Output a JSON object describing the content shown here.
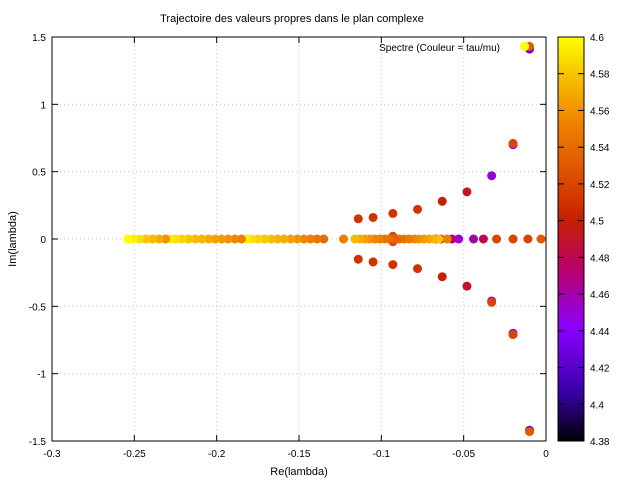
{
  "chart_data": {
    "type": "scatter",
    "title": "Trajectoire des valeurs propres dans le plan complexe",
    "xlabel": "Re(lambda)",
    "ylabel": "Im(lambda)",
    "xlim": [
      -0.3,
      0
    ],
    "ylim": [
      -1.5,
      1.5
    ],
    "xticks": [
      -0.3,
      -0.25,
      -0.2,
      -0.15,
      -0.1,
      -0.05,
      0
    ],
    "xtick_labels": [
      "-0.3",
      "-0.25",
      "-0.2",
      "-0.15",
      "-0.1",
      "-0.05",
      "0"
    ],
    "yticks": [
      -1.5,
      -1,
      -0.5,
      0,
      0.5,
      1,
      1.5
    ],
    "ytick_labels": [
      "-1.5",
      "-1",
      "-0.5",
      "0",
      "0.5",
      "1",
      "1.5"
    ],
    "grid": true,
    "legend": {
      "label": "Spectre (Couleur = tau/mu)",
      "position": "top-right"
    },
    "colorbar": {
      "range": [
        4.38,
        4.6
      ],
      "ticks": [
        4.38,
        4.4,
        4.42,
        4.44,
        4.46,
        4.48,
        4.5,
        4.52,
        4.54,
        4.56,
        4.58,
        4.6
      ],
      "tick_labels": [
        "4.38",
        "4.4",
        "4.42",
        "4.44",
        "4.46",
        "4.48",
        "4.5",
        "4.52",
        "4.54",
        "4.56",
        "4.58",
        "4.6"
      ],
      "palette": [
        "#000000",
        "#3a00a8",
        "#8a00ff",
        "#b80070",
        "#c82000",
        "#e05800",
        "#f08800",
        "#f8c000",
        "#ffff00"
      ]
    },
    "series": [
      {
        "points": [
          [
            -0.01,
            1.41,
            4.43
          ],
          [
            -0.01,
            1.43,
            4.53
          ],
          [
            -0.013,
            1.43,
            4.6
          ],
          [
            -0.02,
            0.7,
            4.44
          ],
          [
            -0.02,
            0.71,
            4.52
          ],
          [
            -0.033,
            0.47,
            4.45
          ],
          [
            -0.048,
            0.35,
            4.49
          ],
          [
            -0.063,
            0.28,
            4.5
          ],
          [
            -0.078,
            0.22,
            4.51
          ],
          [
            -0.093,
            0.19,
            4.51
          ],
          [
            -0.105,
            0.16,
            4.51
          ],
          [
            -0.114,
            0.15,
            4.51
          ],
          [
            -0.01,
            -1.42,
            4.43
          ],
          [
            -0.01,
            -1.43,
            4.53
          ],
          [
            -0.02,
            -0.7,
            4.44
          ],
          [
            -0.02,
            -0.71,
            4.52
          ],
          [
            -0.033,
            -0.46,
            4.45
          ],
          [
            -0.033,
            -0.47,
            4.52
          ],
          [
            -0.048,
            -0.35,
            4.49
          ],
          [
            -0.063,
            -0.28,
            4.5
          ],
          [
            -0.078,
            -0.22,
            4.51
          ],
          [
            -0.093,
            -0.19,
            4.51
          ],
          [
            -0.105,
            -0.17,
            4.51
          ],
          [
            -0.114,
            -0.15,
            4.51
          ],
          [
            -0.003,
            0,
            4.53
          ],
          [
            -0.011,
            0,
            4.52
          ],
          [
            -0.02,
            0,
            4.52
          ],
          [
            -0.03,
            0,
            4.52
          ],
          [
            -0.038,
            0,
            4.48
          ],
          [
            -0.044,
            0,
            4.46
          ],
          [
            -0.053,
            0,
            4.45
          ],
          [
            -0.057,
            0,
            4.47
          ],
          [
            -0.064,
            0,
            4.47
          ],
          [
            -0.067,
            0,
            4.46
          ],
          [
            -0.06,
            0,
            4.55
          ],
          [
            -0.093,
            0.02,
            4.52
          ],
          [
            -0.093,
            -0.02,
            4.52
          ],
          [
            -0.123,
            0,
            4.55
          ],
          [
            -0.065,
            0,
            4.58
          ],
          [
            -0.068,
            0,
            4.575
          ],
          [
            -0.071,
            0,
            4.57
          ],
          [
            -0.074,
            0,
            4.565
          ],
          [
            -0.077,
            0,
            4.56
          ],
          [
            -0.08,
            0,
            4.555
          ],
          [
            -0.083,
            0,
            4.55
          ],
          [
            -0.086,
            0,
            4.545
          ],
          [
            -0.089,
            0,
            4.54
          ],
          [
            -0.092,
            0,
            4.535
          ],
          [
            -0.095,
            0,
            4.54
          ],
          [
            -0.098,
            0,
            4.545
          ],
          [
            -0.101,
            0,
            4.55
          ],
          [
            -0.104,
            0,
            4.555
          ],
          [
            -0.107,
            0,
            4.56
          ],
          [
            -0.11,
            0,
            4.565
          ],
          [
            -0.113,
            0,
            4.57
          ],
          [
            -0.116,
            0,
            4.575
          ],
          [
            -0.135,
            0,
            4.54
          ],
          [
            -0.139,
            0,
            4.545
          ],
          [
            -0.143,
            0,
            4.55
          ],
          [
            -0.147,
            0,
            4.555
          ],
          [
            -0.151,
            0,
            4.56
          ],
          [
            -0.155,
            0,
            4.565
          ],
          [
            -0.159,
            0,
            4.57
          ],
          [
            -0.163,
            0,
            4.573
          ],
          [
            -0.167,
            0,
            4.577
          ],
          [
            -0.171,
            0,
            4.58
          ],
          [
            -0.175,
            0,
            4.585
          ],
          [
            -0.179,
            0,
            4.59
          ],
          [
            -0.182,
            0,
            4.595
          ],
          [
            -0.185,
            0,
            4.55
          ],
          [
            -0.189,
            0,
            4.555
          ],
          [
            -0.193,
            0,
            4.56
          ],
          [
            -0.197,
            0,
            4.563
          ],
          [
            -0.201,
            0,
            4.566
          ],
          [
            -0.205,
            0,
            4.57
          ],
          [
            -0.209,
            0,
            4.573
          ],
          [
            -0.213,
            0,
            4.577
          ],
          [
            -0.217,
            0,
            4.58
          ],
          [
            -0.221,
            0,
            4.585
          ],
          [
            -0.225,
            0,
            4.59
          ],
          [
            -0.228,
            0,
            4.595
          ],
          [
            -0.231,
            0,
            4.56
          ],
          [
            -0.235,
            0,
            4.57
          ],
          [
            -0.239,
            0,
            4.575
          ],
          [
            -0.243,
            0,
            4.58
          ],
          [
            -0.247,
            0,
            4.59
          ],
          [
            -0.251,
            0,
            4.595
          ],
          [
            -0.254,
            0,
            4.6
          ]
        ]
      }
    ]
  }
}
